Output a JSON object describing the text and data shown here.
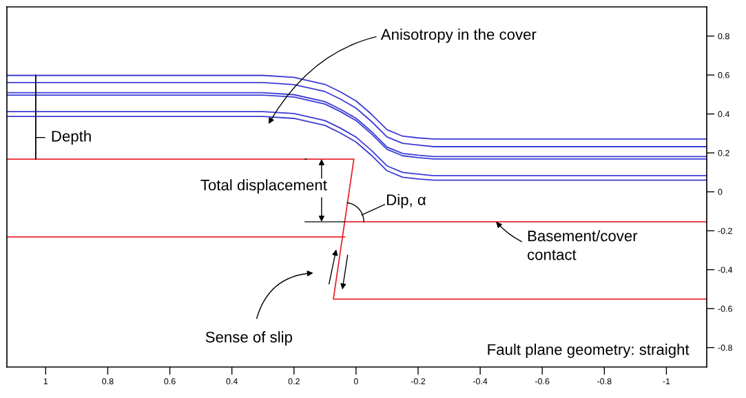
{
  "chart_data": {
    "type": "line",
    "xlim": [
      1.125,
      -1.13
    ],
    "ylim": [
      -0.9,
      0.95
    ],
    "xticks": [
      1,
      0.8,
      0.6,
      0.4,
      0.2,
      0,
      -0.2,
      -0.4,
      -0.6,
      -0.8,
      -1
    ],
    "yticks": [
      0.8,
      0.6,
      0.4,
      0.2,
      0,
      -0.2,
      -0.4,
      -0.6,
      -0.8
    ],
    "grid": false,
    "legend": false,
    "marker": "none",
    "line_style": "solid",
    "series": [
      {
        "color": "#3b3bd6",
        "x": [
          1.125,
          0.3,
          0.2,
          0.1,
          0.05,
          0,
          -0.05,
          -0.1,
          -0.15,
          -0.2,
          -0.25,
          -1.13
        ],
        "values": [
          0.598,
          0.598,
          0.588,
          0.552,
          0.513,
          0.467,
          0.398,
          0.319,
          0.286,
          0.277,
          0.271,
          0.271
        ]
      },
      {
        "color": "#3b3bd6",
        "x": [
          1.125,
          0.3,
          0.2,
          0.1,
          0.05,
          0,
          -0.05,
          -0.1,
          -0.15,
          -0.2,
          -0.25,
          -1.13
        ],
        "values": [
          0.561,
          0.561,
          0.551,
          0.515,
          0.476,
          0.43,
          0.361,
          0.282,
          0.249,
          0.24,
          0.232,
          0.232
        ]
      },
      {
        "color": "#3b3bd6",
        "x": [
          1.125,
          0.3,
          0.2,
          0.1,
          0.05,
          0,
          -0.05,
          -0.1,
          -0.15,
          -0.2,
          -0.25,
          -1.13
        ],
        "values": [
          0.509,
          0.509,
          0.499,
          0.463,
          0.424,
          0.378,
          0.309,
          0.23,
          0.197,
          0.188,
          0.181,
          0.181
        ]
      },
      {
        "color": "#3b3bd6",
        "x": [
          1.125,
          0.3,
          0.2,
          0.1,
          0.05,
          0,
          -0.05,
          -0.1,
          -0.15,
          -0.2,
          -0.25,
          -1.13
        ],
        "values": [
          0.497,
          0.497,
          0.487,
          0.451,
          0.412,
          0.366,
          0.297,
          0.218,
          0.185,
          0.176,
          0.169,
          0.169
        ]
      },
      {
        "color": "#3b3bd6",
        "x": [
          1.125,
          0.3,
          0.2,
          0.1,
          0.05,
          0,
          -0.05,
          -0.1,
          -0.15,
          -0.2,
          -0.25,
          -1.13
        ],
        "values": [
          0.412,
          0.412,
          0.402,
          0.366,
          0.327,
          0.281,
          0.212,
          0.133,
          0.1,
          0.091,
          0.083,
          0.083
        ]
      },
      {
        "color": "#3b3bd6",
        "x": [
          1.125,
          0.3,
          0.2,
          0.1,
          0.05,
          0,
          -0.05,
          -0.1,
          -0.15,
          -0.2,
          -0.25,
          -1.13
        ],
        "values": [
          0.387,
          0.387,
          0.377,
          0.341,
          0.302,
          0.256,
          0.187,
          0.108,
          0.075,
          0.066,
          0.06,
          0.06
        ]
      },
      {
        "color": "#e8262d",
        "x": [
          1.125,
          0.007,
          0.073,
          -1.13
        ],
        "values": [
          0.168,
          0.168,
          -0.551,
          -0.551
        ]
      },
      {
        "color": "#e8262d",
        "x": [
          1.125,
          0.036
        ],
        "values": [
          -0.232,
          -0.232
        ]
      },
      {
        "color": "#000000",
        "x": [
          1.032,
          1.032
        ],
        "values": [
          0.598,
          0.168
        ]
      },
      {
        "color": "#e8262d",
        "x": [
          0.037,
          -1.13
        ],
        "values": [
          -0.154,
          -0.154
        ]
      }
    ],
    "annotations": [
      "Anisotropy in the cover",
      "Depth",
      {
        "text": "Total displacement",
        "x": 0.111,
        "y": 0.168
      },
      {
        "text": "Dip, α",
        "x": 0.037,
        "y": -0.154
      },
      {
        "text": "Basement/cover\ncontact",
        "x": -0.451,
        "y": -0.154
      },
      "Sense of slip",
      "Fault plane geometry: straight"
    ]
  }
}
